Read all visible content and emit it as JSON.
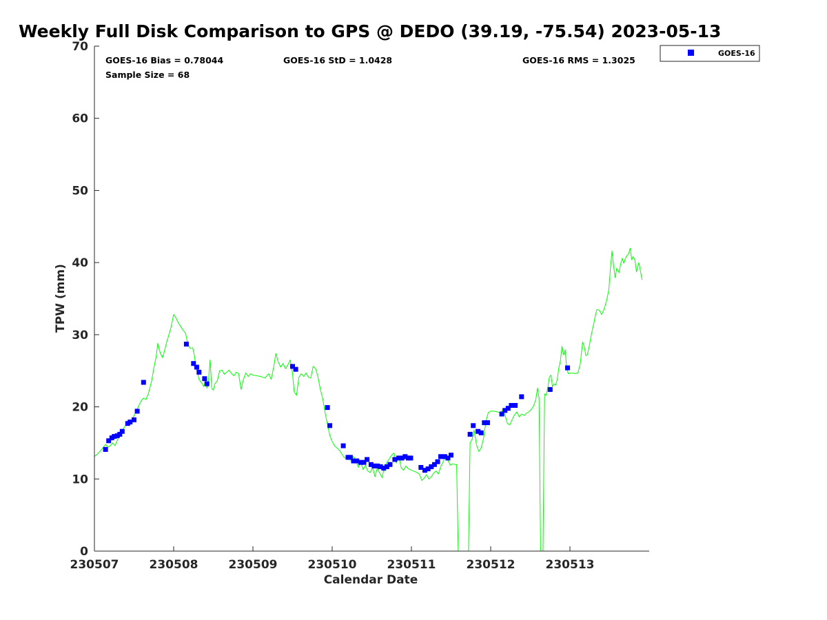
{
  "chart_data": {
    "type": "scatter",
    "title": "Weekly Full Disk Comparison to GPS @ DEDO (39.19, -75.54) 2023-05-13",
    "xlabel": "Calendar Date",
    "ylabel": "TPW (mm)",
    "xlim": [
      0,
      7
    ],
    "ylim": [
      0,
      70
    ],
    "x_ticks": [
      0,
      1,
      2,
      3,
      4,
      5,
      6
    ],
    "x_tick_labels": [
      "230507",
      "230508",
      "230509",
      "230510",
      "230511",
      "230512",
      "230513"
    ],
    "y_ticks": [
      0,
      10,
      20,
      30,
      40,
      50,
      60,
      70
    ],
    "y_tick_labels": [
      "0",
      "10",
      "20",
      "30",
      "40",
      "50",
      "60",
      "70"
    ],
    "grid": false,
    "legend_position": "top-right, outside plot",
    "stats": {
      "bias": "GOES-16 Bias = 0.78044",
      "std": "GOES-16 StD = 1.0428",
      "rms": "GOES-16 RMS = 1.3025",
      "sample": "Sample Size = 68"
    },
    "series": [
      {
        "name": "GOES-16",
        "kind": "scatter",
        "color": "#0000ff",
        "marker": "square",
        "points": [
          [
            0.14,
            14.1
          ],
          [
            0.18,
            15.3
          ],
          [
            0.22,
            15.7
          ],
          [
            0.25,
            15.9
          ],
          [
            0.29,
            16.0
          ],
          [
            0.32,
            16.2
          ],
          [
            0.35,
            16.6
          ],
          [
            0.42,
            17.7
          ],
          [
            0.45,
            17.9
          ],
          [
            0.5,
            18.2
          ],
          [
            0.54,
            19.4
          ],
          [
            0.62,
            23.4
          ],
          [
            1.16,
            28.7
          ],
          [
            1.25,
            26.0
          ],
          [
            1.29,
            25.5
          ],
          [
            1.32,
            24.8
          ],
          [
            1.39,
            23.9
          ],
          [
            1.42,
            23.2
          ],
          [
            2.5,
            25.6
          ],
          [
            2.54,
            25.2
          ],
          [
            2.94,
            19.9
          ],
          [
            2.97,
            17.4
          ],
          [
            3.14,
            14.6
          ],
          [
            3.2,
            13.0
          ],
          [
            3.23,
            13.0
          ],
          [
            3.27,
            12.5
          ],
          [
            3.31,
            12.5
          ],
          [
            3.36,
            12.3
          ],
          [
            3.4,
            12.3
          ],
          [
            3.44,
            12.7
          ],
          [
            3.49,
            12.0
          ],
          [
            3.53,
            11.8
          ],
          [
            3.57,
            11.8
          ],
          [
            3.61,
            11.7
          ],
          [
            3.65,
            11.5
          ],
          [
            3.69,
            11.7
          ],
          [
            3.73,
            12.0
          ],
          [
            3.79,
            12.7
          ],
          [
            3.84,
            12.9
          ],
          [
            3.88,
            12.9
          ],
          [
            3.92,
            13.1
          ],
          [
            3.96,
            12.9
          ],
          [
            3.99,
            12.9
          ],
          [
            4.12,
            11.6
          ],
          [
            4.17,
            11.2
          ],
          [
            4.21,
            11.4
          ],
          [
            4.25,
            11.7
          ],
          [
            4.29,
            12.0
          ],
          [
            4.33,
            12.4
          ],
          [
            4.37,
            13.1
          ],
          [
            4.42,
            13.1
          ],
          [
            4.46,
            12.9
          ],
          [
            4.5,
            13.3
          ],
          [
            4.74,
            16.2
          ],
          [
            4.78,
            17.4
          ],
          [
            4.84,
            16.6
          ],
          [
            4.88,
            16.4
          ],
          [
            4.92,
            17.8
          ],
          [
            4.96,
            17.8
          ],
          [
            5.14,
            19.0
          ],
          [
            5.18,
            19.5
          ],
          [
            5.22,
            19.8
          ],
          [
            5.26,
            20.2
          ],
          [
            5.31,
            20.2
          ],
          [
            5.39,
            21.4
          ],
          [
            5.75,
            22.4
          ],
          [
            5.97,
            25.4
          ]
        ]
      },
      {
        "name": "",
        "kind": "line",
        "color": "#00ff00",
        "points": [
          [
            0.0,
            13.1
          ],
          [
            0.05,
            13.6
          ],
          [
            0.1,
            14.2
          ],
          [
            0.14,
            14.8
          ],
          [
            0.17,
            14.4
          ],
          [
            0.2,
            14.6
          ],
          [
            0.23,
            15.0
          ],
          [
            0.26,
            14.6
          ],
          [
            0.29,
            15.4
          ],
          [
            0.32,
            16.2
          ],
          [
            0.35,
            16.8
          ],
          [
            0.38,
            17.2
          ],
          [
            0.41,
            17.8
          ],
          [
            0.44,
            17.5
          ],
          [
            0.47,
            18.0
          ],
          [
            0.5,
            18.8
          ],
          [
            0.53,
            19.4
          ],
          [
            0.56,
            20.2
          ],
          [
            0.59,
            20.8
          ],
          [
            0.62,
            21.2
          ],
          [
            0.65,
            21.0
          ],
          [
            0.68,
            21.8
          ],
          [
            0.72,
            23.5
          ],
          [
            0.75,
            25.4
          ],
          [
            0.78,
            27.0
          ],
          [
            0.8,
            28.8
          ],
          [
            0.83,
            27.5
          ],
          [
            0.86,
            26.8
          ],
          [
            0.88,
            27.6
          ],
          [
            0.91,
            28.9
          ],
          [
            0.94,
            30.0
          ],
          [
            0.97,
            31.2
          ],
          [
            1.0,
            32.8
          ],
          [
            1.03,
            32.3
          ],
          [
            1.06,
            31.6
          ],
          [
            1.09,
            31.1
          ],
          [
            1.12,
            30.6
          ],
          [
            1.15,
            30.2
          ],
          [
            1.18,
            28.6
          ],
          [
            1.21,
            28.1
          ],
          [
            1.24,
            28.2
          ],
          [
            1.26,
            27.2
          ],
          [
            1.28,
            25.6
          ],
          [
            1.3,
            24.8
          ],
          [
            1.32,
            23.8
          ],
          [
            1.34,
            23.5
          ],
          [
            1.36,
            23.2
          ],
          [
            1.38,
            22.8
          ],
          [
            1.4,
            23.6
          ],
          [
            1.42,
            22.6
          ],
          [
            1.44,
            23.8
          ],
          [
            1.46,
            26.5
          ],
          [
            1.48,
            22.6
          ],
          [
            1.5,
            22.3
          ],
          [
            1.52,
            23.2
          ],
          [
            1.55,
            23.6
          ],
          [
            1.58,
            25.0
          ],
          [
            1.61,
            25.1
          ],
          [
            1.64,
            24.5
          ],
          [
            1.67,
            24.8
          ],
          [
            1.7,
            25.1
          ],
          [
            1.73,
            24.6
          ],
          [
            1.76,
            24.3
          ],
          [
            1.79,
            24.8
          ],
          [
            1.82,
            24.6
          ],
          [
            1.85,
            22.4
          ],
          [
            1.88,
            23.8
          ],
          [
            1.91,
            24.7
          ],
          [
            1.94,
            24.2
          ],
          [
            1.97,
            24.6
          ],
          [
            2.0,
            24.4
          ],
          [
            2.05,
            24.3
          ],
          [
            2.1,
            24.2
          ],
          [
            2.15,
            24.0
          ],
          [
            2.2,
            24.6
          ],
          [
            2.23,
            23.8
          ],
          [
            2.26,
            25.4
          ],
          [
            2.29,
            27.4
          ],
          [
            2.32,
            26.2
          ],
          [
            2.35,
            25.5
          ],
          [
            2.38,
            26.0
          ],
          [
            2.41,
            25.3
          ],
          [
            2.44,
            25.8
          ],
          [
            2.47,
            26.5
          ],
          [
            2.5,
            24.6
          ],
          [
            2.52,
            22.1
          ],
          [
            2.55,
            21.6
          ],
          [
            2.58,
            24.1
          ],
          [
            2.61,
            24.6
          ],
          [
            2.64,
            24.2
          ],
          [
            2.67,
            24.7
          ],
          [
            2.7,
            24.1
          ],
          [
            2.73,
            24.0
          ],
          [
            2.76,
            25.6
          ],
          [
            2.79,
            25.3
          ],
          [
            2.82,
            24.2
          ],
          [
            2.85,
            22.4
          ],
          [
            2.88,
            21.2
          ],
          [
            2.91,
            19.2
          ],
          [
            2.94,
            17.6
          ],
          [
            2.97,
            16.0
          ],
          [
            3.0,
            15.2
          ],
          [
            3.03,
            14.6
          ],
          [
            3.06,
            14.3
          ],
          [
            3.09,
            14.0
          ],
          [
            3.12,
            13.5
          ],
          [
            3.15,
            13.0
          ],
          [
            3.18,
            12.8
          ],
          [
            3.21,
            13.2
          ],
          [
            3.24,
            12.5
          ],
          [
            3.27,
            13.1
          ],
          [
            3.3,
            12.6
          ],
          [
            3.33,
            11.6
          ],
          [
            3.36,
            12.4
          ],
          [
            3.39,
            11.3
          ],
          [
            3.42,
            11.9
          ],
          [
            3.45,
            11.1
          ],
          [
            3.48,
            10.9
          ],
          [
            3.51,
            11.6
          ],
          [
            3.54,
            10.3
          ],
          [
            3.57,
            11.5
          ],
          [
            3.6,
            10.8
          ],
          [
            3.63,
            10.2
          ],
          [
            3.66,
            11.7
          ],
          [
            3.69,
            12.3
          ],
          [
            3.72,
            12.8
          ],
          [
            3.75,
            13.3
          ],
          [
            3.78,
            13.6
          ],
          [
            3.81,
            12.2
          ],
          [
            3.84,
            13.2
          ],
          [
            3.87,
            11.6
          ],
          [
            3.9,
            11.2
          ],
          [
            3.93,
            11.8
          ],
          [
            3.96,
            11.4
          ],
          [
            4.0,
            11.2
          ],
          [
            4.05,
            11.0
          ],
          [
            4.1,
            10.7
          ],
          [
            4.13,
            9.8
          ],
          [
            4.16,
            10.1
          ],
          [
            4.19,
            10.6
          ],
          [
            4.22,
            10.0
          ],
          [
            4.25,
            10.3
          ],
          [
            4.28,
            10.8
          ],
          [
            4.31,
            11.1
          ],
          [
            4.34,
            10.7
          ],
          [
            4.37,
            11.7
          ],
          [
            4.4,
            12.4
          ],
          [
            4.43,
            13.3
          ],
          [
            4.46,
            12.6
          ],
          [
            4.49,
            11.9
          ],
          [
            4.52,
            12.1
          ],
          [
            4.55,
            12.0
          ],
          [
            4.57,
            12.0
          ],
          [
            4.59,
            0.0
          ],
          [
            4.72,
            0.0
          ],
          [
            4.74,
            15.0
          ],
          [
            4.77,
            15.6
          ],
          [
            4.79,
            16.8
          ],
          [
            4.82,
            14.8
          ],
          [
            4.85,
            13.8
          ],
          [
            4.88,
            14.3
          ],
          [
            4.91,
            15.6
          ],
          [
            4.94,
            18.0
          ],
          [
            4.97,
            19.2
          ],
          [
            5.0,
            19.4
          ],
          [
            5.04,
            19.4
          ],
          [
            5.08,
            19.3
          ],
          [
            5.12,
            19.2
          ],
          [
            5.15,
            19.5
          ],
          [
            5.18,
            18.9
          ],
          [
            5.21,
            17.7
          ],
          [
            5.24,
            17.5
          ],
          [
            5.27,
            18.2
          ],
          [
            5.3,
            18.9
          ],
          [
            5.33,
            19.3
          ],
          [
            5.36,
            18.6
          ],
          [
            5.39,
            19.0
          ],
          [
            5.42,
            18.8
          ],
          [
            5.45,
            19.1
          ],
          [
            5.48,
            19.3
          ],
          [
            5.51,
            19.6
          ],
          [
            5.54,
            20.1
          ],
          [
            5.57,
            21.0
          ],
          [
            5.59,
            22.6
          ],
          [
            5.61,
            21.2
          ],
          [
            5.63,
            0.0
          ],
          [
            5.66,
            0.0
          ],
          [
            5.68,
            21.8
          ],
          [
            5.7,
            21.6
          ],
          [
            5.72,
            22.6
          ],
          [
            5.74,
            24.1
          ],
          [
            5.76,
            24.4
          ],
          [
            5.78,
            22.8
          ],
          [
            5.8,
            23.2
          ],
          [
            5.82,
            23.0
          ],
          [
            5.84,
            23.8
          ],
          [
            5.86,
            25.4
          ],
          [
            5.88,
            26.4
          ],
          [
            5.9,
            28.4
          ],
          [
            5.92,
            27.2
          ],
          [
            5.94,
            27.9
          ],
          [
            5.96,
            25.2
          ],
          [
            5.98,
            24.6
          ],
          [
            6.02,
            24.7
          ],
          [
            6.06,
            24.6
          ],
          [
            6.1,
            24.7
          ],
          [
            6.13,
            25.9
          ],
          [
            6.16,
            29.0
          ],
          [
            6.18,
            28.4
          ],
          [
            6.2,
            27.1
          ],
          [
            6.22,
            27.2
          ],
          [
            6.24,
            28.2
          ],
          [
            6.27,
            30.0
          ],
          [
            6.3,
            31.5
          ],
          [
            6.32,
            32.6
          ],
          [
            6.34,
            33.5
          ],
          [
            6.37,
            33.4
          ],
          [
            6.4,
            32.8
          ],
          [
            6.43,
            33.5
          ],
          [
            6.46,
            34.6
          ],
          [
            6.49,
            36.2
          ],
          [
            6.51,
            39.0
          ],
          [
            6.53,
            41.6
          ],
          [
            6.55,
            39.6
          ],
          [
            6.57,
            37.9
          ],
          [
            6.59,
            39.2
          ],
          [
            6.62,
            38.6
          ],
          [
            6.64,
            39.8
          ],
          [
            6.66,
            40.6
          ],
          [
            6.68,
            39.9
          ],
          [
            6.7,
            40.6
          ],
          [
            6.72,
            41.0
          ],
          [
            6.74,
            41.2
          ],
          [
            6.76,
            42.0
          ],
          [
            6.78,
            40.4
          ],
          [
            6.8,
            40.8
          ],
          [
            6.82,
            40.3
          ],
          [
            6.84,
            38.7
          ],
          [
            6.87,
            40.0
          ],
          [
            6.89,
            38.8
          ],
          [
            6.91,
            37.6
          ]
        ]
      }
    ]
  }
}
